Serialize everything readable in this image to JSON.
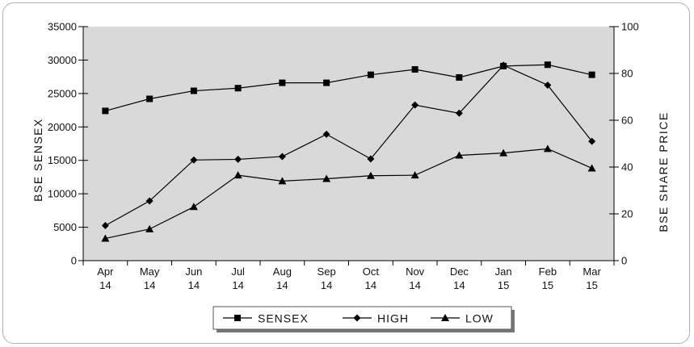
{
  "chart_data": {
    "type": "line",
    "title": "",
    "categories": [
      {
        "line1": "Apr",
        "line2": "14"
      },
      {
        "line1": "May",
        "line2": "14"
      },
      {
        "line1": "Jun",
        "line2": "14"
      },
      {
        "line1": "Jul",
        "line2": "14"
      },
      {
        "line1": "Aug",
        "line2": "14"
      },
      {
        "line1": "Sep",
        "line2": "14"
      },
      {
        "line1": "Oct",
        "line2": "14"
      },
      {
        "line1": "Nov",
        "line2": "14"
      },
      {
        "line1": "Dec",
        "line2": "14"
      },
      {
        "line1": "Jan",
        "line2": "15"
      },
      {
        "line1": "Feb",
        "line2": "15"
      },
      {
        "line1": "Mar",
        "line2": "15"
      }
    ],
    "ylabel_left": "BSE  SENSEX",
    "ylabel_right": "BSE  SHARE  PRICE",
    "ylim_left": [
      0,
      35000
    ],
    "ylim_right": [
      0,
      100
    ],
    "yticks_left": [
      "0",
      "5000",
      "10000",
      "15000",
      "20000",
      "25000",
      "30000",
      "35000"
    ],
    "yticks_right": [
      "0",
      "20",
      "40",
      "60",
      "80",
      "100"
    ],
    "grid": false,
    "legend_position": "bottom-center",
    "plot_background": "#d9d9d9",
    "line_color": "#000000",
    "series": [
      {
        "name": "SENSEX",
        "axis": "left",
        "marker": "square",
        "values": [
          22400,
          24200,
          25400,
          25800,
          26600,
          26600,
          27800,
          28600,
          27400,
          29100,
          29300,
          27800
        ]
      },
      {
        "name": "HIGH",
        "axis": "right",
        "marker": "diamond",
        "values": [
          15,
          25.5,
          43,
          43.3,
          44.5,
          54,
          43.5,
          66.5,
          63,
          83.5,
          75,
          51
        ]
      },
      {
        "name": "LOW",
        "axis": "right",
        "marker": "triangle",
        "values": [
          9.5,
          13.5,
          23,
          36.5,
          34,
          35,
          36.3,
          36.5,
          45,
          46,
          47.8,
          39.5
        ]
      }
    ]
  }
}
